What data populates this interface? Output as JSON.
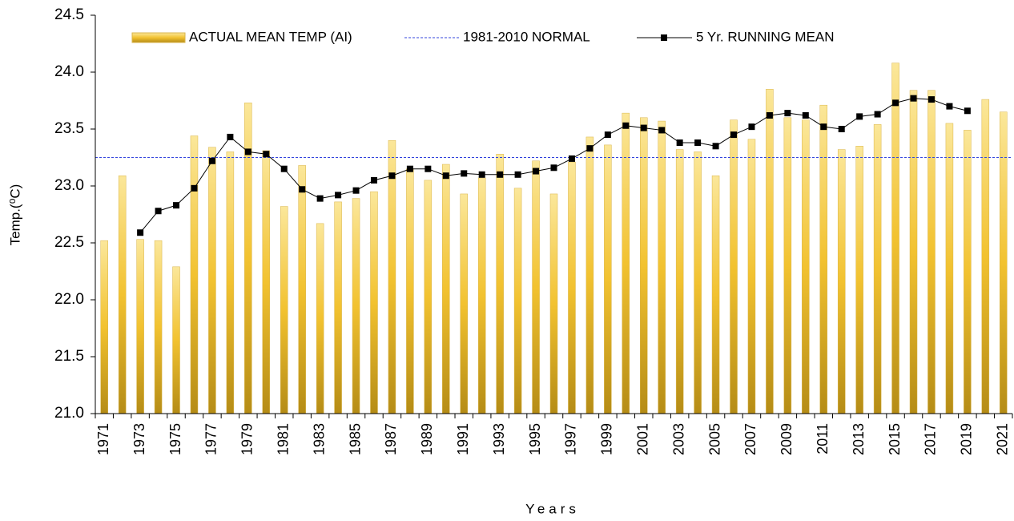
{
  "chart_data": {
    "type": "bar",
    "x_label": "Years",
    "y_label": "Temp.(⁰C)",
    "categories": [
      "1971",
      null,
      "1973",
      null,
      "1975",
      null,
      "1977",
      null,
      "1979",
      null,
      "1981",
      null,
      "1983",
      null,
      "1985",
      null,
      "1987",
      null,
      "1989",
      null,
      "1991",
      null,
      "1993",
      null,
      "1995",
      null,
      "1997",
      null,
      "1999",
      null,
      "2001",
      null,
      "2003",
      null,
      "2005",
      null,
      "2007",
      null,
      "2009",
      null,
      "2011",
      null,
      "2013",
      null,
      "2015",
      null,
      "2017",
      null,
      "2019",
      null,
      "2021"
    ],
    "series": [
      {
        "name": "ACTUAL MEAN TEMP (AI)",
        "type": "bar",
        "color": "#f2c230",
        "values": [
          22.52,
          23.09,
          22.53,
          22.52,
          22.29,
          23.44,
          23.34,
          23.3,
          23.73,
          23.31,
          22.82,
          23.18,
          22.67,
          22.86,
          22.89,
          22.95,
          23.4,
          23.15,
          23.05,
          23.19,
          22.93,
          23.07,
          23.28,
          22.98,
          23.22,
          22.93,
          23.21,
          23.43,
          23.36,
          23.64,
          23.6,
          23.57,
          23.32,
          23.3,
          23.09,
          23.58,
          23.41,
          23.85,
          23.6,
          23.58,
          23.71,
          23.32,
          23.35,
          23.54,
          24.08,
          23.84,
          23.84,
          23.55,
          23.49,
          23.76,
          23.65
        ]
      },
      {
        "name": "5 Yr. RUNNING MEAN",
        "type": "line",
        "color": "#000000",
        "values": [
          null,
          null,
          22.59,
          22.78,
          22.83,
          22.98,
          23.22,
          23.43,
          23.3,
          23.28,
          23.15,
          22.97,
          22.89,
          22.92,
          22.96,
          23.05,
          23.09,
          23.15,
          23.15,
          23.09,
          23.11,
          23.1,
          23.1,
          23.1,
          23.13,
          23.16,
          23.24,
          23.33,
          23.45,
          23.53,
          23.51,
          23.49,
          23.38,
          23.38,
          23.35,
          23.45,
          23.52,
          23.62,
          23.64,
          23.62,
          23.52,
          23.5,
          23.61,
          23.63,
          23.73,
          23.77,
          23.76,
          23.7,
          23.66,
          null,
          null
        ]
      }
    ],
    "reference_line": {
      "name": "1981-2010 NORMAL",
      "value": 23.25,
      "color": "#3344dd"
    },
    "ylim": [
      21,
      24.5
    ],
    "yticks": [
      {
        "value": 21,
        "label": "21.0"
      },
      21.5,
      {
        "value": 22,
        "label": "22.0"
      },
      22.5,
      {
        "value": 23,
        "label": "23.0"
      },
      23.5,
      {
        "value": 24,
        "label": "24.0"
      },
      24.5
    ],
    "grid": false
  }
}
